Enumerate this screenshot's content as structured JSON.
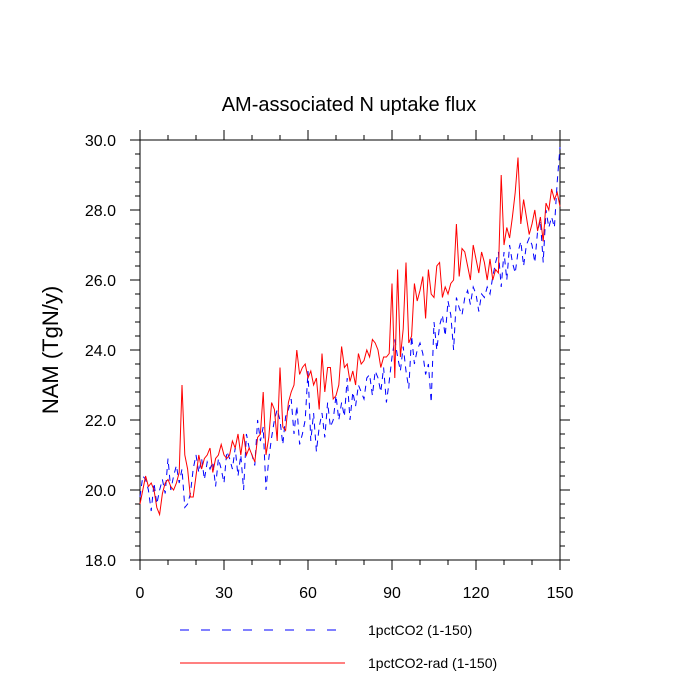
{
  "chart_data": {
    "type": "line",
    "title": "AM-associated N uptake flux",
    "xlabel": "",
    "ylabel": "NAM  (TgN/y)",
    "xlim": [
      0,
      150
    ],
    "ylim": [
      18,
      30
    ],
    "x_ticks": [
      0,
      30,
      60,
      90,
      120,
      150
    ],
    "x_tick_labels": [
      "0",
      "30",
      "60",
      "90",
      "120",
      "150"
    ],
    "y_ticks": [
      18,
      20,
      22,
      24,
      26,
      28,
      30
    ],
    "y_tick_labels": [
      "18.0",
      "20.0",
      "22.0",
      "24.0",
      "26.0",
      "28.0",
      "30.0"
    ],
    "grid": false,
    "legend_position": "bottom",
    "x": [
      0,
      1,
      2,
      3,
      4,
      5,
      6,
      7,
      8,
      9,
      10,
      11,
      12,
      13,
      14,
      15,
      16,
      17,
      18,
      19,
      20,
      21,
      22,
      23,
      24,
      25,
      26,
      27,
      28,
      29,
      30,
      31,
      32,
      33,
      34,
      35,
      36,
      37,
      38,
      39,
      40,
      41,
      42,
      43,
      44,
      45,
      46,
      47,
      48,
      49,
      50,
      51,
      52,
      53,
      54,
      55,
      56,
      57,
      58,
      59,
      60,
      61,
      62,
      63,
      64,
      65,
      66,
      67,
      68,
      69,
      70,
      71,
      72,
      73,
      74,
      75,
      76,
      77,
      78,
      79,
      80,
      81,
      82,
      83,
      84,
      85,
      86,
      87,
      88,
      89,
      90,
      91,
      92,
      93,
      94,
      95,
      96,
      97,
      98,
      99,
      100,
      101,
      102,
      103,
      104,
      105,
      106,
      107,
      108,
      109,
      110,
      111,
      112,
      113,
      114,
      115,
      116,
      117,
      118,
      119,
      120,
      121,
      122,
      123,
      124,
      125,
      126,
      127,
      128,
      129,
      130,
      131,
      132,
      133,
      134,
      135,
      136,
      137,
      138,
      139,
      140,
      141,
      142,
      143,
      144,
      145,
      146,
      147,
      148,
      149,
      150
    ],
    "series": [
      {
        "name": "1pctCO2 (1-150)",
        "color": "#0000ff",
        "dash": "dashed",
        "values": [
          19.8,
          20.4,
          20.3,
          20.0,
          19.4,
          20.2,
          19.6,
          20.0,
          20.3,
          19.9,
          20.9,
          20.0,
          20.4,
          20.7,
          20.2,
          20.6,
          19.5,
          19.6,
          19.9,
          20.6,
          21.0,
          20.5,
          20.9,
          20.3,
          20.8,
          20.6,
          20.8,
          20.1,
          20.9,
          20.6,
          20.2,
          21.1,
          20.9,
          20.6,
          21.2,
          20.4,
          21.0,
          20.0,
          21.6,
          21.2,
          21.0,
          20.7,
          22.0,
          21.4,
          21.8,
          20.0,
          20.9,
          21.5,
          22.0,
          22.3,
          22.0,
          21.3,
          22.1,
          22.3,
          22.6,
          21.6,
          22.4,
          21.3,
          21.6,
          22.0,
          23.4,
          21.4,
          22.2,
          21.1,
          21.8,
          22.2,
          21.5,
          22.5,
          21.8,
          22.0,
          22.7,
          22.0,
          22.5,
          22.1,
          23.2,
          22.0,
          22.8,
          22.4,
          23.0,
          22.8,
          22.6,
          23.2,
          23.3,
          22.7,
          23.4,
          23.2,
          22.8,
          23.5,
          22.5,
          23.1,
          23.8,
          24.3,
          23.8,
          23.4,
          24.1,
          23.4,
          22.9,
          24.4,
          23.6,
          24.0,
          24.2,
          23.9,
          23.3,
          23.6,
          22.5,
          24.8,
          24.0,
          24.7,
          25.0,
          24.4,
          25.4,
          25.0,
          24.0,
          25.5,
          25.2,
          25.0,
          25.5,
          25.7,
          25.3,
          25.8,
          25.6,
          25.1,
          25.6,
          25.5,
          25.8,
          25.6,
          26.1,
          26.5,
          26.8,
          25.8,
          26.8,
          26.0,
          27.0,
          26.5,
          26.2,
          26.8,
          27.1,
          26.4,
          27.0,
          27.2,
          27.0,
          26.5,
          27.4,
          27.7,
          26.5,
          28.0,
          27.5,
          27.8,
          27.5,
          28.8,
          29.8
        ]
      },
      {
        "name": "1pctCO2-rad (1-150)",
        "color": "#ff0000",
        "dash": "solid",
        "values": [
          19.6,
          20.0,
          20.4,
          20.1,
          20.2,
          20.0,
          19.5,
          19.3,
          19.9,
          20.2,
          20.3,
          20.1,
          20.0,
          20.2,
          20.5,
          23.0,
          21.0,
          20.6,
          19.8,
          19.8,
          20.4,
          21.0,
          20.6,
          20.9,
          21.0,
          21.2,
          20.5,
          20.9,
          21.0,
          21.3,
          21.0,
          20.9,
          21.0,
          21.4,
          21.2,
          21.6,
          21.0,
          21.6,
          21.0,
          21.2,
          21.0,
          20.8,
          21.5,
          21.6,
          22.8,
          21.0,
          21.5,
          22.5,
          22.3,
          21.4,
          23.5,
          21.8,
          21.7,
          22.5,
          22.8,
          23.0,
          24.0,
          23.3,
          23.5,
          23.6,
          23.2,
          23.4,
          23.0,
          23.2,
          22.3,
          23.9,
          22.8,
          23.5,
          23.5,
          22.6,
          22.7,
          23.0,
          24.1,
          23.5,
          23.6,
          23.1,
          23.4,
          23.0,
          23.9,
          23.6,
          23.7,
          24.0,
          23.8,
          24.3,
          24.2,
          24.0,
          23.5,
          23.8,
          23.8,
          23.9,
          25.9,
          23.2,
          26.3,
          23.8,
          24.6,
          26.5,
          24.2,
          24.4,
          25.9,
          25.4,
          25.7,
          26.1,
          24.9,
          26.3,
          25.6,
          25.5,
          26.4,
          26.5,
          25.5,
          25.8,
          25.6,
          25.9,
          26.0,
          27.6,
          26.1,
          26.9,
          26.8,
          26.4,
          26.0,
          27.0,
          26.6,
          26.2,
          26.8,
          26.5,
          26.0,
          26.6,
          26.0,
          26.3,
          26.2,
          29.0,
          27.0,
          27.5,
          27.2,
          27.8,
          28.5,
          29.5,
          27.6,
          28.3,
          27.8,
          27.3,
          27.6,
          28.0,
          27.4,
          27.8,
          27.1,
          28.2,
          28.0,
          28.6,
          28.3,
          28.5,
          28.1
        ]
      }
    ]
  }
}
